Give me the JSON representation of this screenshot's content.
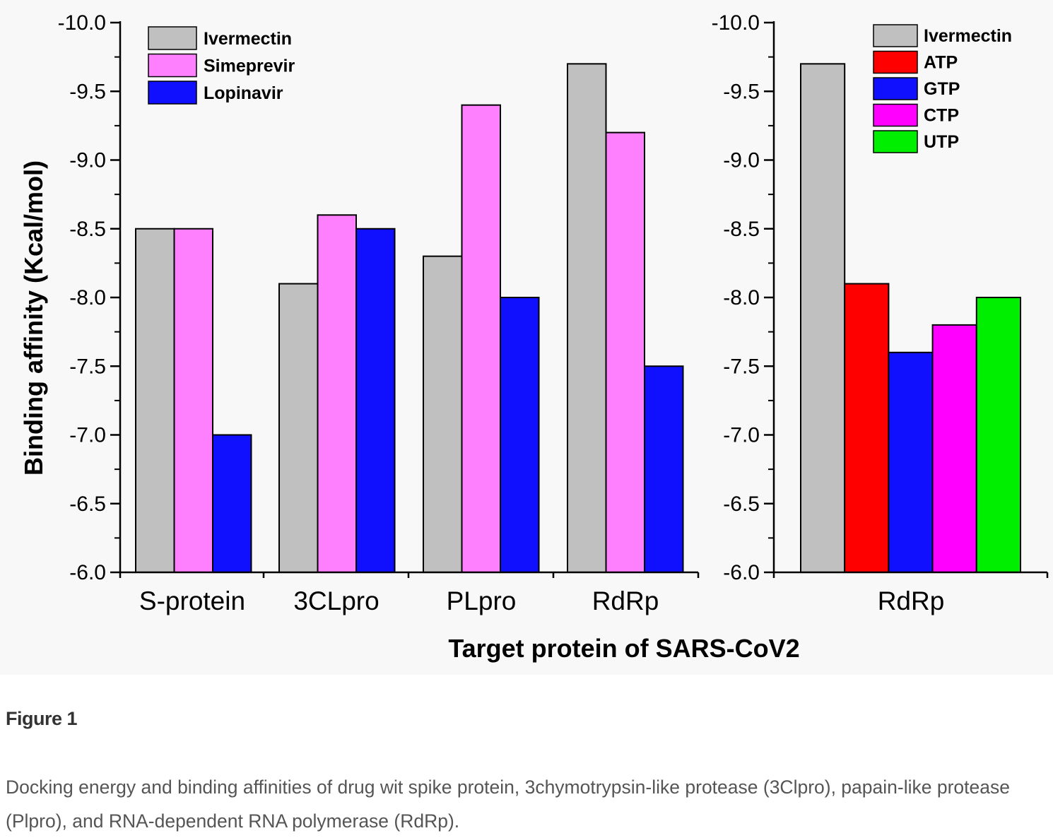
{
  "colors": {
    "Ivermectin": "#c0c0c0",
    "Simeprevir": "#ff80ff",
    "Lopinavir": "#1010ff",
    "ATP": "#ff0000",
    "GTP": "#1010ff",
    "CTP": "#ff00ff",
    "UTP": "#00ee00"
  },
  "chart_data": [
    {
      "type": "bar",
      "title": "",
      "ylabel": "Binding affinity (Kcal/mol)",
      "xlabel": "Target protein of SARS-CoV2",
      "ylim": [
        -6.0,
        -10.0
      ],
      "yticks": [
        "-10.0",
        "-9.5",
        "-9.0",
        "-8.5",
        "-8.0",
        "-7.5",
        "-7.0",
        "-6.5",
        "-6.0"
      ],
      "categories": [
        "S-protein",
        "3CLpro",
        "PLpro",
        "RdRp"
      ],
      "legend_position": "top-left",
      "series": [
        {
          "name": "Ivermectin",
          "values": [
            -8.5,
            -8.1,
            -8.3,
            -9.7
          ]
        },
        {
          "name": "Simeprevir",
          "values": [
            -8.5,
            -8.6,
            -9.4,
            -9.2
          ]
        },
        {
          "name": "Lopinavir",
          "values": [
            -7.0,
            -8.5,
            -8.0,
            -7.5
          ]
        }
      ]
    },
    {
      "type": "bar",
      "title": "",
      "ylabel": "",
      "xlabel": "Target protein of SARS-CoV2",
      "ylim": [
        -6.0,
        -10.0
      ],
      "yticks": [
        "-10.0",
        "-9.5",
        "-9.0",
        "-8.5",
        "-8.0",
        "-7.5",
        "-7.0",
        "-6.5",
        "-6.0"
      ],
      "categories": [
        "RdRp"
      ],
      "legend_position": "top-right",
      "series": [
        {
          "name": "Ivermectin",
          "values": [
            -9.7
          ]
        },
        {
          "name": "ATP",
          "values": [
            -8.1
          ]
        },
        {
          "name": "GTP",
          "values": [
            -7.6
          ]
        },
        {
          "name": "CTP",
          "values": [
            -7.8
          ]
        },
        {
          "name": "UTP",
          "values": [
            -8.0
          ]
        }
      ]
    }
  ],
  "figure": {
    "label": "Figure 1",
    "caption": "Docking energy and binding affinities of drug wit spike protein, 3chymotrypsin-like protease (3Clpro), papain-like protease (Plpro), and RNA-dependent RNA polymerase (RdRp)."
  }
}
